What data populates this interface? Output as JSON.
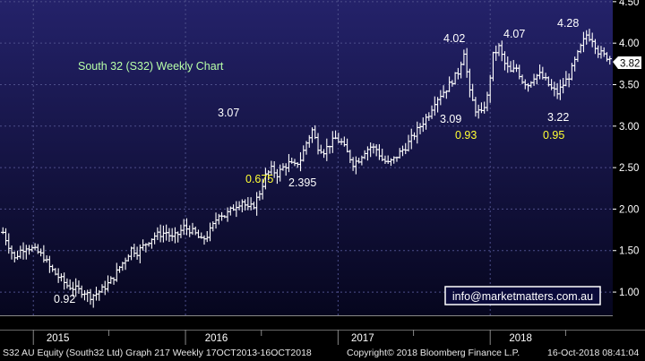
{
  "chart_data": {
    "type": "ohlc",
    "title": "South 32 (S32) Weekly Chart",
    "ylim": [
      0.72,
      4.52
    ],
    "y_ticks": [
      "1.00",
      "1.50",
      "2.00",
      "2.50",
      "3.00",
      "3.50",
      "4.00",
      "4.50"
    ],
    "x_ticks": [
      "2015",
      "2016",
      "2017",
      "2018"
    ],
    "last_price": "3.82",
    "annotations": [
      {
        "text": "0.92",
        "color": "#ffffff",
        "x": "2015-11-30"
      },
      {
        "text": "3.07",
        "color": "#ffffff",
        "x": "2016-10-31"
      },
      {
        "text": "0.675",
        "color": "#ffff33",
        "x": "2016-11-21"
      },
      {
        "text": "2.395",
        "color": "#ffffff",
        "x": "2016-12-19"
      },
      {
        "text": "4.02",
        "color": "#ffffff",
        "x": "2017-10-23"
      },
      {
        "text": "3.09",
        "color": "#ffffff",
        "x": "2017-10-30"
      },
      {
        "text": "0.93",
        "color": "#ffff33",
        "x": "2017-11-13"
      },
      {
        "text": "4.07",
        "color": "#ffffff",
        "x": "2018-01-22"
      },
      {
        "text": "3.22",
        "color": "#ffffff",
        "x": "2018-06-25"
      },
      {
        "text": "0.95",
        "color": "#ffff33",
        "x": "2018-06-11"
      },
      {
        "text": "4.28",
        "color": "#ffffff",
        "x": "2018-09-03"
      }
    ],
    "prices": [
      [
        "2014-10-20",
        1.72
      ],
      [
        "2014-11-03",
        1.56
      ],
      [
        "2014-11-17",
        1.4
      ],
      [
        "2014-12-01",
        1.5
      ],
      [
        "2014-12-15",
        1.55
      ],
      [
        "2014-12-29",
        1.52
      ],
      [
        "2015-01-12",
        1.48
      ],
      [
        "2015-01-26",
        1.42
      ],
      [
        "2015-02-09",
        1.3
      ],
      [
        "2015-02-23",
        1.22
      ],
      [
        "2015-03-09",
        1.15
      ],
      [
        "2015-03-23",
        1.08
      ],
      [
        "2015-04-06",
        1.05
      ],
      [
        "2015-04-20",
        1.02
      ],
      [
        "2015-05-04",
        1.0
      ],
      [
        "2015-05-18",
        0.95
      ],
      [
        "2015-06-01",
        0.98
      ],
      [
        "2015-06-15",
        1.03
      ],
      [
        "2015-06-29",
        1.1
      ],
      [
        "2015-07-13",
        1.18
      ],
      [
        "2015-07-27",
        1.3
      ],
      [
        "2015-08-10",
        1.4
      ],
      [
        "2015-08-24",
        1.52
      ],
      [
        "2015-09-07",
        1.48
      ],
      [
        "2015-09-21",
        1.55
      ],
      [
        "2015-10-05",
        1.62
      ],
      [
        "2015-10-19",
        1.68
      ],
      [
        "2015-11-02",
        1.7
      ],
      [
        "2015-11-16",
        1.72
      ],
      [
        "2015-11-30",
        1.65
      ],
      [
        "2015-12-14",
        1.7
      ],
      [
        "2015-12-28",
        1.78
      ],
      [
        "2016-01-11",
        1.75
      ],
      [
        "2016-01-25",
        1.7
      ],
      [
        "2016-02-08",
        1.62
      ],
      [
        "2016-02-22",
        1.68
      ],
      [
        "2016-03-07",
        1.8
      ],
      [
        "2016-03-21",
        1.95
      ],
      [
        "2016-04-04",
        1.92
      ],
      [
        "2016-04-18",
        1.98
      ],
      [
        "2016-05-02",
        2.05
      ],
      [
        "2016-05-16",
        2.1
      ],
      [
        "2016-05-30",
        2.0
      ],
      [
        "2016-06-13",
        2.05
      ],
      [
        "2016-06-27",
        2.2
      ],
      [
        "2016-07-11",
        2.4
      ],
      [
        "2016-07-25",
        2.48
      ],
      [
        "2016-08-08",
        2.42
      ],
      [
        "2016-08-22",
        2.5
      ],
      [
        "2016-09-05",
        2.55
      ],
      [
        "2016-09-19",
        2.52
      ],
      [
        "2016-10-03",
        2.6
      ],
      [
        "2016-10-17",
        2.8
      ],
      [
        "2016-10-31",
        2.95
      ],
      [
        "2016-11-14",
        2.75
      ],
      [
        "2016-11-28",
        2.7
      ],
      [
        "2016-12-12",
        2.78
      ],
      [
        "2016-12-26",
        2.85
      ],
      [
        "2017-01-09",
        2.8
      ],
      [
        "2017-01-23",
        2.68
      ],
      [
        "2017-02-06",
        2.55
      ],
      [
        "2017-02-20",
        2.6
      ],
      [
        "2017-03-06",
        2.7
      ],
      [
        "2017-03-20",
        2.75
      ],
      [
        "2017-04-03",
        2.72
      ],
      [
        "2017-04-17",
        2.6
      ],
      [
        "2017-05-01",
        2.55
      ],
      [
        "2017-05-15",
        2.6
      ],
      [
        "2017-05-29",
        2.68
      ],
      [
        "2017-06-12",
        2.75
      ],
      [
        "2017-06-26",
        2.85
      ],
      [
        "2017-07-10",
        2.95
      ],
      [
        "2017-07-24",
        3.05
      ],
      [
        "2017-08-07",
        3.15
      ],
      [
        "2017-08-21",
        3.3
      ],
      [
        "2017-09-04",
        3.38
      ],
      [
        "2017-09-18",
        3.45
      ],
      [
        "2017-10-02",
        3.55
      ],
      [
        "2017-10-16",
        3.65
      ],
      [
        "2017-10-30",
        3.9
      ],
      [
        "2017-11-13",
        3.4
      ],
      [
        "2017-11-27",
        3.2
      ],
      [
        "2017-12-11",
        3.15
      ],
      [
        "2017-12-25",
        3.35
      ],
      [
        "2018-01-08",
        3.85
      ],
      [
        "2018-01-22",
        3.95
      ],
      [
        "2018-02-05",
        3.75
      ],
      [
        "2018-02-19",
        3.65
      ],
      [
        "2018-03-05",
        3.7
      ],
      [
        "2018-03-19",
        3.55
      ],
      [
        "2018-04-02",
        3.5
      ],
      [
        "2018-04-16",
        3.6
      ],
      [
        "2018-04-30",
        3.62
      ],
      [
        "2018-05-14",
        3.55
      ],
      [
        "2018-05-28",
        3.45
      ],
      [
        "2018-06-11",
        3.4
      ],
      [
        "2018-06-25",
        3.5
      ],
      [
        "2018-07-09",
        3.6
      ],
      [
        "2018-07-23",
        3.78
      ],
      [
        "2018-08-06",
        3.95
      ],
      [
        "2018-08-20",
        4.1
      ],
      [
        "2018-09-03",
        4.05
      ],
      [
        "2018-09-17",
        3.9
      ],
      [
        "2018-10-01",
        3.85
      ],
      [
        "2018-10-15",
        3.82
      ]
    ]
  },
  "watermark_email": "info@marketmatters.com.au",
  "footer": {
    "left": "S32 AU Equity (South32 Ltd) Graph 217  Weekly 17OCT2013-16OCT2018",
    "right": "Copyright© 2018 Bloomberg Finance L.P.",
    "timestamp": "16-Oct-2018 08:41:04"
  },
  "colors": {
    "background_top": "#24226a",
    "background_bottom": "#06061e",
    "bars": "#ffffff",
    "title": "#b8ffa8",
    "highlight": "#ffff33",
    "grid": "#4d4f8a"
  }
}
